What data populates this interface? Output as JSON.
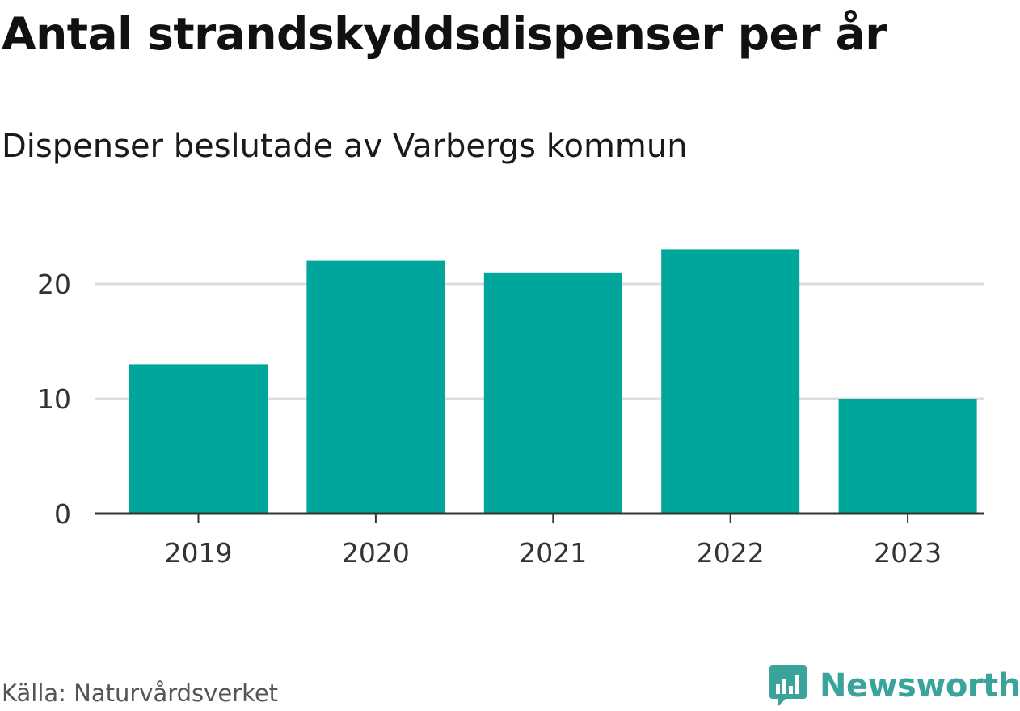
{
  "header": {
    "title": "Antal strandskyddsdispenser per år",
    "subtitle": "Dispenser beslutade av Varbergs kommun"
  },
  "footer": {
    "source": "Källa: Naturvårdsverket",
    "brand": "Newsworthy"
  },
  "colors": {
    "bar": "#00a59b",
    "grid": "#dddddd",
    "axis": "#333333",
    "brand": "#3aa39a"
  },
  "chart_data": {
    "type": "bar",
    "title": "Antal strandskyddsdispenser per år",
    "subtitle": "Dispenser beslutade av Varbergs kommun",
    "categories": [
      "2019",
      "2020",
      "2021",
      "2022",
      "2023"
    ],
    "values": [
      13,
      22,
      21,
      23,
      10
    ],
    "xlabel": "",
    "ylabel": "",
    "ylim": [
      0,
      25
    ],
    "yticks": [
      0,
      10,
      20
    ],
    "grid": true
  }
}
